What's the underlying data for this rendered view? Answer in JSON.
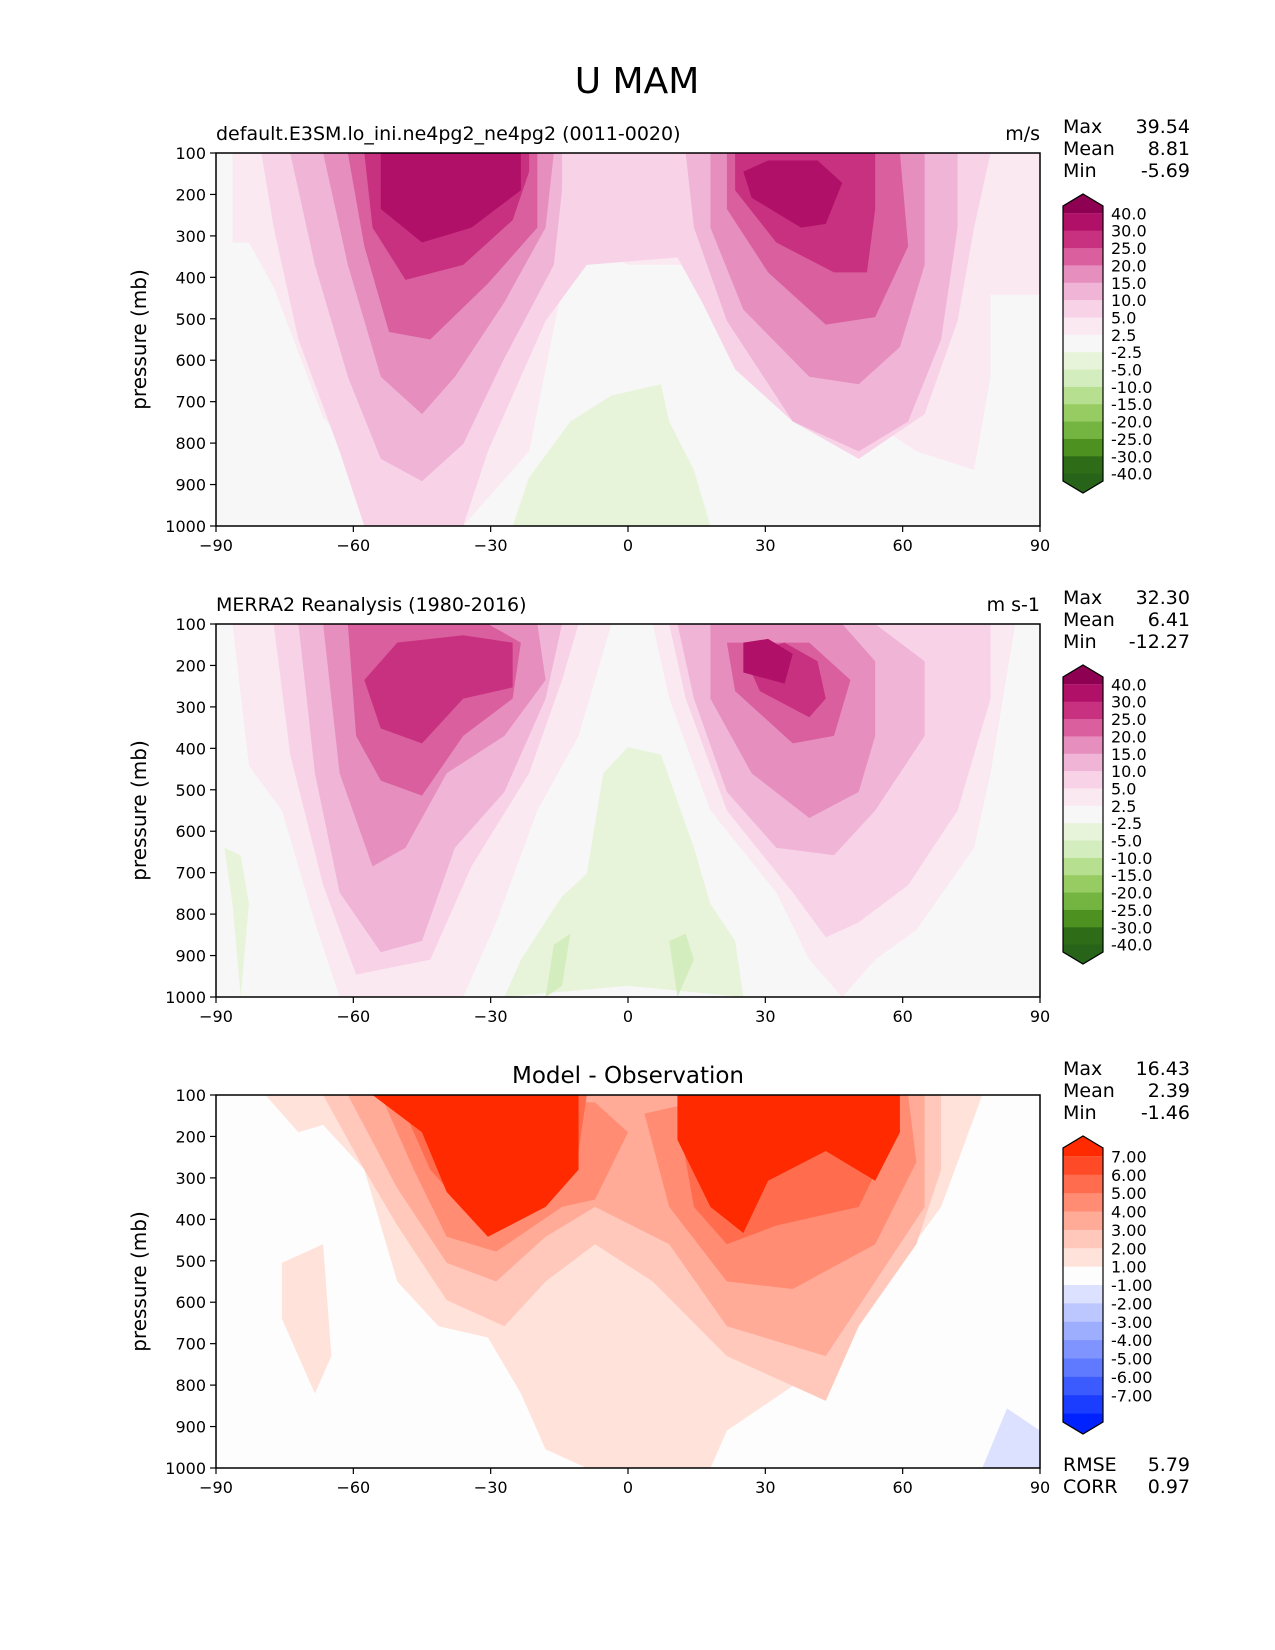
{
  "figure_title": "U MAM",
  "chart_data": [
    {
      "type": "contour",
      "title": "default.E3SM.lo_ini.ne4pg2_ne4pg2 (0011-0020)",
      "units": "m/s",
      "ylabel": "pressure (mb)",
      "xlim": [
        -90,
        90
      ],
      "ylim": [
        1000,
        100
      ],
      "x_ticks": [
        "−90",
        "−60",
        "−30",
        "0",
        "30",
        "60",
        "90"
      ],
      "y_ticks": [
        "100",
        "200",
        "300",
        "400",
        "500",
        "600",
        "700",
        "800",
        "900",
        "1000"
      ],
      "stats": [
        {
          "label": "Max",
          "value": "39.54"
        },
        {
          "label": "Mean",
          "value": "8.81"
        },
        {
          "label": "Min",
          "value": "-5.69"
        }
      ],
      "colorbar": {
        "labels": [
          "40.0",
          "30.0",
          "25.0",
          "20.0",
          "15.0",
          "10.0",
          "5.0",
          "2.5",
          "-2.5",
          "-5.0",
          "-10.0",
          "-15.0",
          "-20.0",
          "-25.0",
          "-30.0",
          "-40.0"
        ],
        "colors": [
          "#8e0152",
          "#b01068",
          "#c8317f",
          "#da5f9f",
          "#e68fbf",
          "#f0b4d7",
          "#f8d3e8",
          "#fbe9f2",
          "#f7f7f7",
          "#e8f4da",
          "#d4edbe",
          "#b6df8f",
          "#97cc63",
          "#74b541",
          "#4d9221",
          "#2f6c17",
          "#276419"
        ]
      }
    },
    {
      "type": "contour",
      "title": "MERRA2 Reanalysis (1980-2016)",
      "units": "m s-1",
      "ylabel": "pressure (mb)",
      "xlim": [
        -90,
        90
      ],
      "ylim": [
        1000,
        100
      ],
      "x_ticks": [
        "−90",
        "−60",
        "−30",
        "0",
        "30",
        "60",
        "90"
      ],
      "y_ticks": [
        "100",
        "200",
        "300",
        "400",
        "500",
        "600",
        "700",
        "800",
        "900",
        "1000"
      ],
      "stats": [
        {
          "label": "Max",
          "value": "32.30"
        },
        {
          "label": "Mean",
          "value": "6.41"
        },
        {
          "label": "Min",
          "value": "-12.27"
        }
      ],
      "colorbar": {
        "labels": [
          "40.0",
          "30.0",
          "25.0",
          "20.0",
          "15.0",
          "10.0",
          "5.0",
          "2.5",
          "-2.5",
          "-5.0",
          "-10.0",
          "-15.0",
          "-20.0",
          "-25.0",
          "-30.0",
          "-40.0"
        ],
        "colors": [
          "#8e0152",
          "#b01068",
          "#c8317f",
          "#da5f9f",
          "#e68fbf",
          "#f0b4d7",
          "#f8d3e8",
          "#fbe9f2",
          "#f7f7f7",
          "#e8f4da",
          "#d4edbe",
          "#b6df8f",
          "#97cc63",
          "#74b541",
          "#4d9221",
          "#2f6c17",
          "#276419"
        ]
      }
    },
    {
      "type": "contour",
      "title": "Model - Observation",
      "ylabel": "pressure (mb)",
      "xlim": [
        -90,
        90
      ],
      "ylim": [
        1000,
        100
      ],
      "x_ticks": [
        "−90",
        "−60",
        "−30",
        "0",
        "30",
        "60",
        "90"
      ],
      "y_ticks": [
        "100",
        "200",
        "300",
        "400",
        "500",
        "600",
        "700",
        "800",
        "900",
        "1000"
      ],
      "stats": [
        {
          "label": "Max",
          "value": "16.43"
        },
        {
          "label": "Mean",
          "value": "2.39"
        },
        {
          "label": "Min",
          "value": "-1.46"
        }
      ],
      "metrics": [
        {
          "label": "RMSE",
          "value": "5.79"
        },
        {
          "label": "CORR",
          "value": "0.97"
        }
      ],
      "colorbar": {
        "labels": [
          "7.00",
          "6.00",
          "5.00",
          "4.00",
          "3.00",
          "2.00",
          "1.00",
          "-1.00",
          "-2.00",
          "-3.00",
          "-4.00",
          "-5.00",
          "-6.00",
          "-7.00"
        ],
        "colors": [
          "#ff2a00",
          "#ff4a28",
          "#ff6c4e",
          "#ff8c73",
          "#ffab98",
          "#ffc8bb",
          "#ffe2da",
          "#fdfdfd",
          "#dbe1ff",
          "#bcc7ff",
          "#9eaeff",
          "#7f94ff",
          "#5f7aff",
          "#3b5bff",
          "#1b3dff",
          "#0022ff"
        ]
      }
    }
  ]
}
